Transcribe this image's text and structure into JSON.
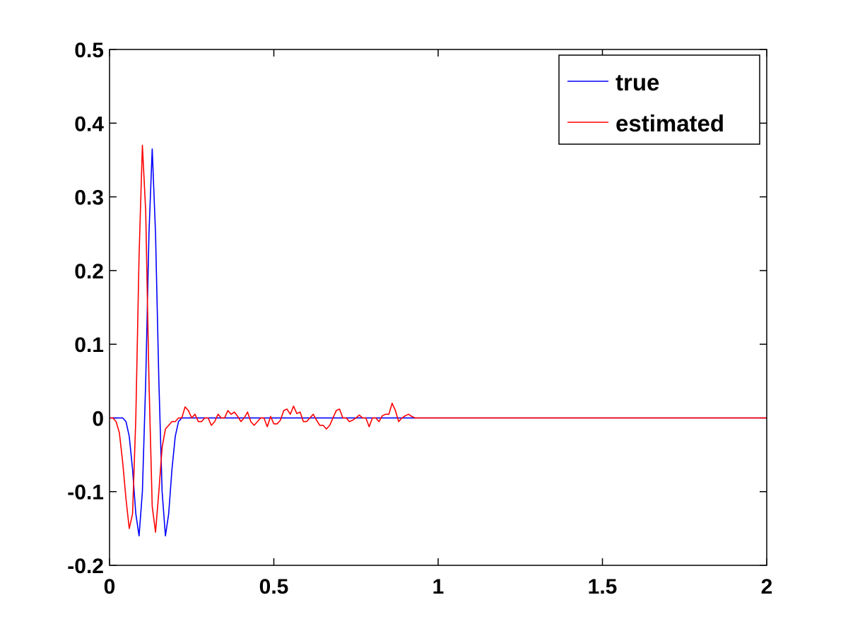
{
  "chart_data": {
    "type": "line",
    "title": "",
    "xlabel": "",
    "ylabel": "",
    "xlim": [
      0,
      2
    ],
    "ylim": [
      -0.2,
      0.5
    ],
    "grid": false,
    "legend_position": "top-right",
    "x_ticks": [
      0,
      0.5,
      1,
      1.5,
      2
    ],
    "x_tick_labels": [
      "0",
      "0.5",
      "1",
      "1.5",
      "2"
    ],
    "y_ticks": [
      -0.2,
      -0.1,
      0,
      0.1,
      0.2,
      0.3,
      0.4,
      0.5
    ],
    "y_tick_labels": [
      "-0.2",
      "-0.1",
      "0",
      "0.1",
      "0.2",
      "0.3",
      "0.4",
      "0.5"
    ],
    "series": [
      {
        "name": "true",
        "color": "#0000ff",
        "x": [
          0,
          0.02,
          0.04,
          0.05,
          0.06,
          0.07,
          0.08,
          0.09,
          0.1,
          0.11,
          0.12,
          0.13,
          0.14,
          0.15,
          0.16,
          0.17,
          0.18,
          0.19,
          0.2,
          0.21,
          0.22,
          0.23,
          0.25,
          0.3,
          0.4,
          0.5,
          0.6,
          0.7,
          0.8,
          0.9,
          1.0,
          1.25,
          1.5,
          1.75,
          2.0
        ],
        "y": [
          0,
          0,
          0,
          -0.005,
          -0.025,
          -0.07,
          -0.13,
          -0.16,
          -0.1,
          0.05,
          0.25,
          0.365,
          0.25,
          0.05,
          -0.1,
          -0.16,
          -0.13,
          -0.07,
          -0.025,
          -0.005,
          0,
          0,
          0,
          0,
          0,
          0,
          0,
          0,
          0,
          0,
          0,
          0,
          0,
          0,
          0
        ]
      },
      {
        "name": "estimated",
        "color": "#ff0000",
        "x": [
          0,
          0.01,
          0.02,
          0.03,
          0.04,
          0.05,
          0.06,
          0.07,
          0.08,
          0.09,
          0.1,
          0.11,
          0.12,
          0.13,
          0.14,
          0.15,
          0.16,
          0.17,
          0.18,
          0.19,
          0.2,
          0.21,
          0.22,
          0.23,
          0.24,
          0.25,
          0.26,
          0.27,
          0.28,
          0.29,
          0.3,
          0.31,
          0.32,
          0.33,
          0.34,
          0.35,
          0.36,
          0.37,
          0.38,
          0.39,
          0.4,
          0.41,
          0.42,
          0.43,
          0.44,
          0.45,
          0.46,
          0.47,
          0.48,
          0.49,
          0.5,
          0.51,
          0.52,
          0.53,
          0.54,
          0.55,
          0.56,
          0.57,
          0.58,
          0.59,
          0.6,
          0.61,
          0.62,
          0.63,
          0.64,
          0.65,
          0.66,
          0.67,
          0.68,
          0.69,
          0.7,
          0.71,
          0.72,
          0.73,
          0.74,
          0.75,
          0.76,
          0.77,
          0.78,
          0.79,
          0.8,
          0.81,
          0.82,
          0.83,
          0.84,
          0.85,
          0.86,
          0.87,
          0.88,
          0.89,
          0.9,
          0.91,
          0.92,
          0.93,
          0.94,
          0.95,
          0.96,
          0.97,
          0.98,
          0.99,
          1.0,
          1.25,
          1.5,
          1.75,
          2.0
        ],
        "y": [
          0,
          0,
          -0.005,
          -0.02,
          -0.06,
          -0.11,
          -0.15,
          -0.13,
          0.0,
          0.22,
          0.37,
          0.28,
          0.05,
          -0.12,
          -0.155,
          -0.1,
          -0.04,
          -0.015,
          -0.01,
          -0.005,
          -0.005,
          0.0,
          0.0,
          0.015,
          0.01,
          0.0,
          0.005,
          -0.005,
          -0.005,
          0.0,
          0.0,
          -0.01,
          -0.005,
          0.005,
          0.0,
          0.0,
          0.01,
          0.005,
          0.008,
          0.002,
          -0.005,
          0.0,
          0.008,
          -0.005,
          -0.01,
          -0.005,
          0.0,
          0.0,
          -0.012,
          0.002,
          -0.008,
          -0.008,
          -0.003,
          0.01,
          0.012,
          0.005,
          0.016,
          0.006,
          0.008,
          -0.005,
          -0.005,
          0.0,
          0.005,
          -0.003,
          -0.01,
          -0.01,
          -0.015,
          -0.01,
          0.0,
          0.01,
          0.012,
          0.0,
          0.0,
          -0.005,
          -0.003,
          0.0,
          0.004,
          0.0,
          0.0,
          -0.012,
          0.0,
          0.0,
          -0.005,
          0.003,
          0.005,
          0.005,
          0.02,
          0.01,
          -0.005,
          0.0,
          0.003,
          0.005,
          0.002,
          0.0,
          0.0,
          0.0,
          0.0,
          0.0,
          0.0,
          0.0,
          0.0,
          0.0,
          0.0,
          0.0,
          0.0
        ]
      }
    ]
  }
}
